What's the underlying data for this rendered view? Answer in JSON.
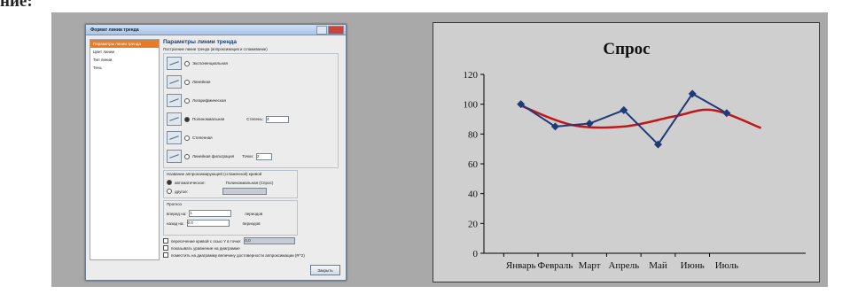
{
  "header_text": "ние:",
  "dialog": {
    "title": "Формат линии тренда",
    "nav_items": [
      "Параметры линии тренда",
      "Цвет линии",
      "Тип линии",
      "Тень"
    ],
    "heading": "Параметры линии тренда",
    "subheading": "Построение линии тренда (аппроксимация и сглаживание)",
    "types": [
      "Экспоненциальная",
      "Линейная",
      "Логарифмическая",
      "Полиномиальная",
      "Степенная",
      "Линейная фильтрация"
    ],
    "degree_label": "Степень:",
    "degree_value": "4",
    "points_label": "Точки:",
    "points_value": "2",
    "name_group_title": "Название аппроксимирующей (сглаженной) кривой",
    "name_auto": "автоматическое:",
    "name_auto_value": "Полиномиальная (Спрос)",
    "name_custom": "другое:",
    "forecast_title": "Прогноз",
    "forward_label": "вперед на:",
    "forward_value": "1",
    "backward_label": "назад на:",
    "backward_value": "0,0",
    "periods_label": "периодов",
    "intercept_label": "пересечение кривой с осью Y в точке:",
    "intercept_value": "0,0",
    "show_equation": "показывать уравнение на диаграмме",
    "show_r2": "поместить на диаграмму величину достоверности аппроксимации (R^2)",
    "close_button": "Закрыть"
  },
  "chart_data": {
    "type": "line",
    "title": "Спрос",
    "categories": [
      "Январь",
      "Февраль",
      "Март",
      "Апрель",
      "Май",
      "Июнь",
      "Июль"
    ],
    "series": [
      {
        "values": [
          100,
          85,
          87,
          96,
          73,
          107,
          94
        ],
        "color": "#1f3a7a"
      }
    ],
    "trend": {
      "type": "polynomial",
      "order": 4,
      "values": [
        99,
        86,
        85,
        92,
        96,
        84
      ],
      "x": [
        1,
        2.5,
        4,
        5.5,
        6.6,
        8
      ],
      "color": "#c01818"
    },
    "ylim": [
      0,
      120
    ],
    "yticks": [
      0,
      20,
      40,
      60,
      80,
      100,
      120
    ],
    "grid": false,
    "legend": "none"
  }
}
